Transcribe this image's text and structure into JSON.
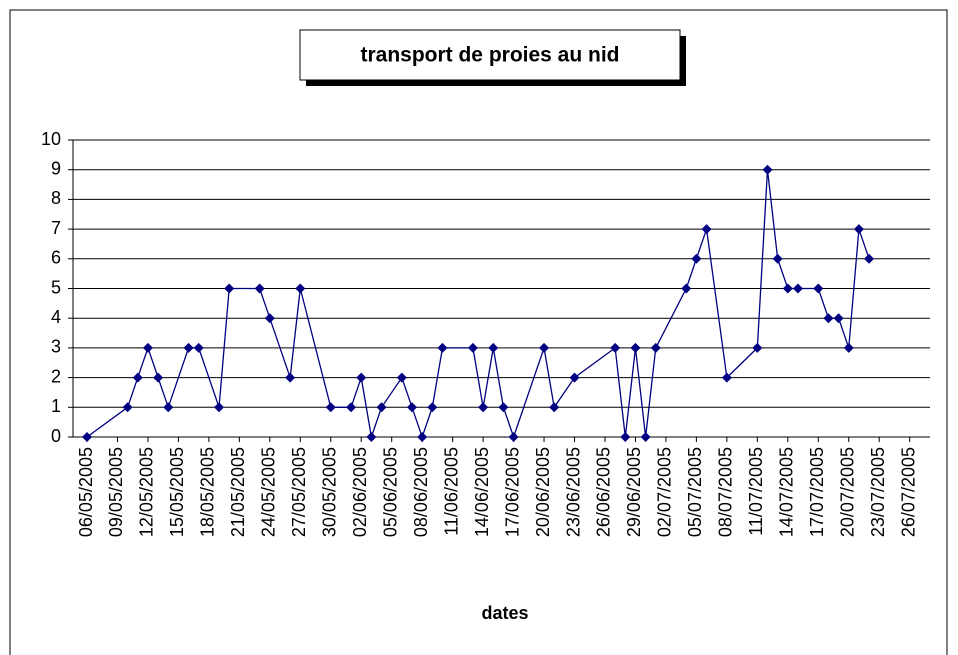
{
  "chart_data": {
    "type": "line",
    "title": "transport de proies au nid",
    "x_label": "dates",
    "x": [
      "06/05/2005",
      "10/05/2005",
      "11/05/2005",
      "12/05/2005",
      "13/05/2005",
      "14/05/2005",
      "16/05/2005",
      "17/05/2005",
      "19/05/2005",
      "20/05/2005",
      "23/05/2005",
      "24/05/2005",
      "26/05/2005",
      "27/05/2005",
      "30/05/2005",
      "01/06/2005",
      "02/06/2005",
      "03/06/2005",
      "04/06/2005",
      "06/06/2005",
      "07/06/2005",
      "08/06/2005",
      "09/06/2005",
      "10/06/2005",
      "13/06/2005",
      "14/06/2005",
      "15/06/2005",
      "16/06/2005",
      "17/06/2005",
      "20/06/2005",
      "21/06/2005",
      "23/06/2005",
      "27/06/2005",
      "28/06/2005",
      "29/06/2005",
      "30/06/2005",
      "01/07/2005",
      "04/07/2005",
      "05/07/2005",
      "06/07/2005",
      "08/07/2005",
      "11/07/2005",
      "12/07/2005",
      "13/07/2005",
      "14/07/2005",
      "15/07/2005",
      "17/07/2005",
      "18/07/2005",
      "19/07/2005",
      "20/07/2005",
      "21/07/2005",
      "22/07/2005"
    ],
    "series": [
      {
        "color": "#000080",
        "values": [
          0,
          1,
          2,
          3,
          2,
          1,
          3,
          3,
          1,
          5,
          5,
          4,
          2,
          5,
          1,
          1,
          2,
          0,
          1,
          2,
          1,
          0,
          1,
          3,
          3,
          1,
          3,
          1,
          0,
          3,
          1,
          2,
          3,
          0,
          3,
          0,
          3,
          5,
          6,
          7,
          2,
          3,
          9,
          6,
          5,
          5,
          5,
          4,
          4,
          3,
          7,
          6
        ]
      }
    ],
    "xlim": [
      "06/05/2005",
      "28/07/2005"
    ],
    "xticks": [
      "06/05/2005",
      "09/05/2005",
      "12/05/2005",
      "15/05/2005",
      "18/05/2005",
      "21/05/2005",
      "24/05/2005",
      "27/05/2005",
      "30/05/2005",
      "02/06/2005",
      "05/06/2005",
      "08/06/2005",
      "11/06/2005",
      "14/06/2005",
      "17/06/2005",
      "20/06/2005",
      "23/06/2005",
      "26/06/2005",
      "29/06/2005",
      "02/07/2005",
      "05/07/2005",
      "08/07/2005",
      "11/07/2005",
      "14/07/2005",
      "17/07/2005",
      "20/07/2005",
      "23/07/2005",
      "26/07/2005"
    ],
    "ylim": [
      0,
      10
    ],
    "yticks": [
      0,
      1,
      2,
      3,
      4,
      5,
      6,
      7,
      8,
      9,
      10
    ],
    "grid": true
  }
}
